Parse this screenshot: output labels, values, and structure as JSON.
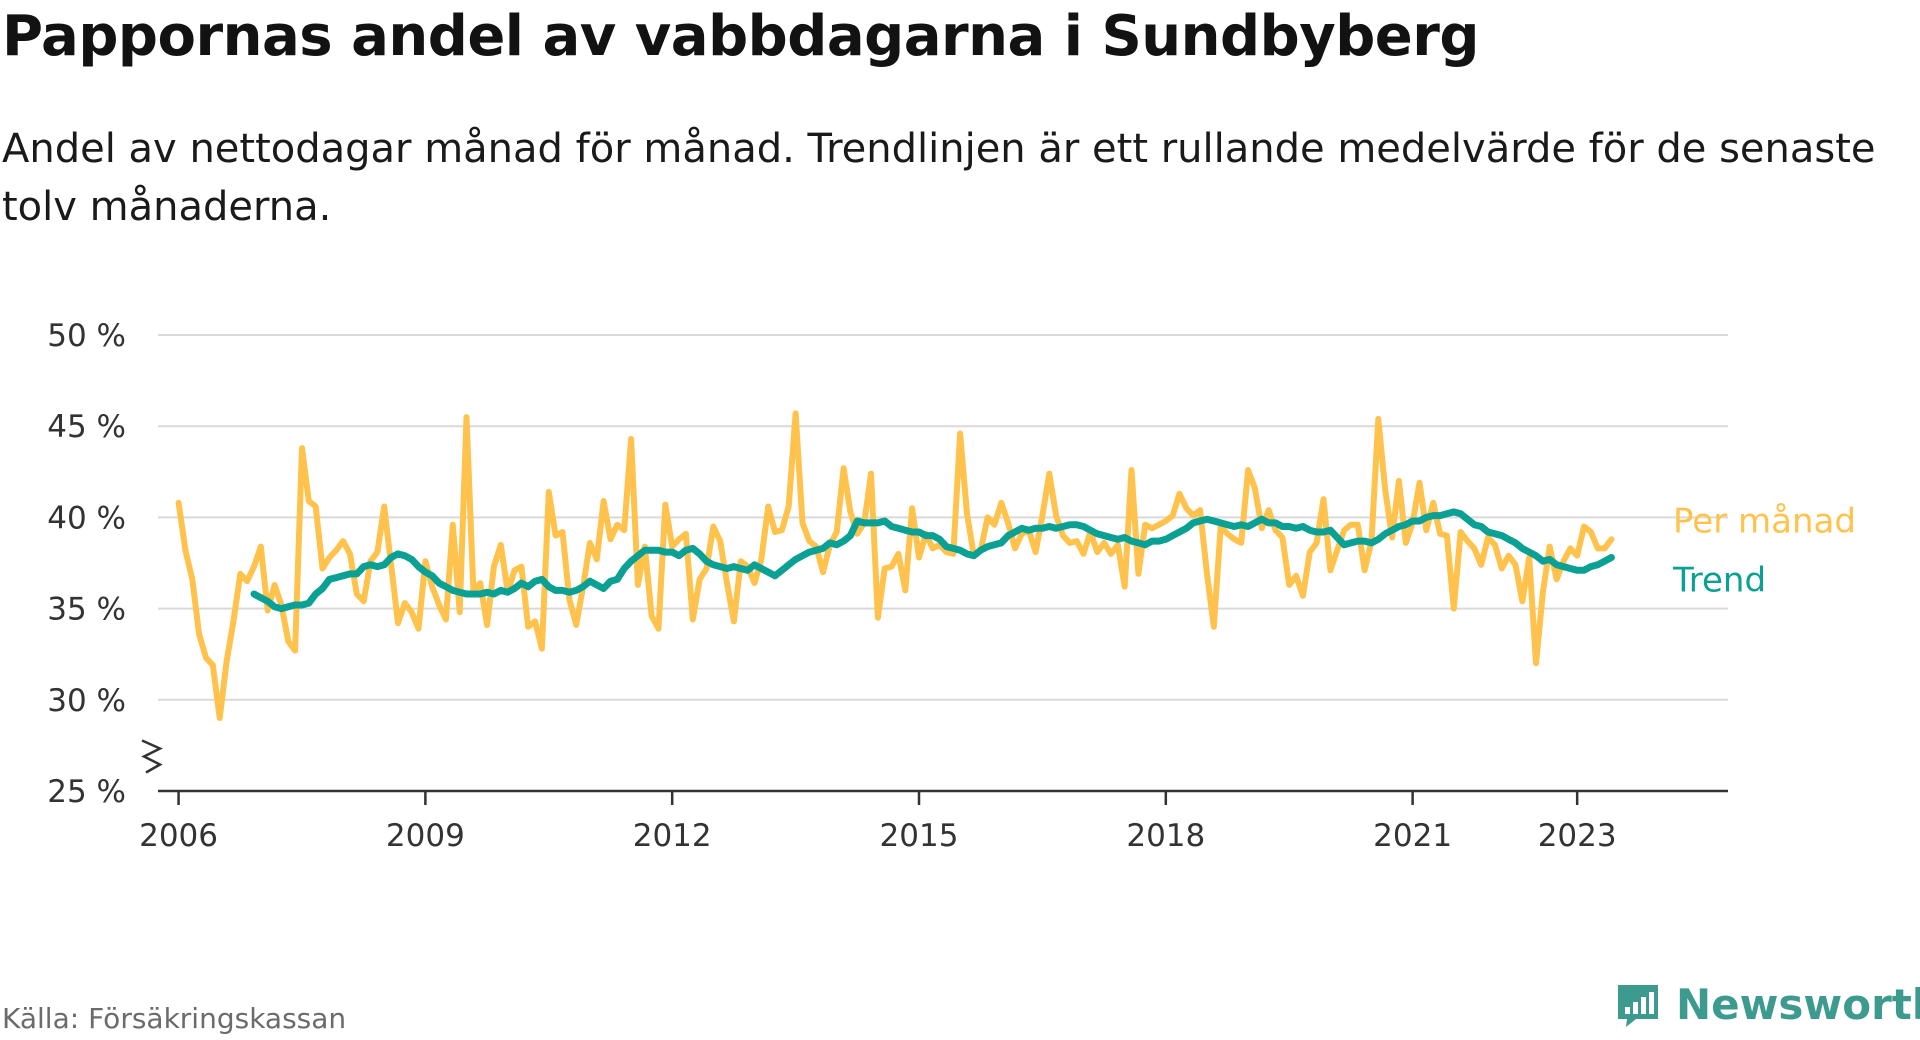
{
  "title": "Pappornas andel av vabbdagarna i Sundbyberg",
  "subtitle": "Andel av nettodagar månad för månad. Trendlinjen är ett rullande medelvärde för de senaste tolv månaderna.",
  "source": "Källa: Försäkringskassan",
  "brand": "Newsworthy",
  "colors": {
    "monthly": "#ffc34d",
    "trend": "#0aa093",
    "grid": "#d9d9d9",
    "axis": "#333333",
    "brand": "#3d9a8e"
  },
  "chart_data": {
    "type": "line",
    "x_axis": {
      "type": "time",
      "range": [
        "2005-10",
        "2024-11"
      ],
      "tick_labels": [
        "2006",
        "2009",
        "2012",
        "2015",
        "2018",
        "2021",
        "2023"
      ],
      "tick_dates": [
        "2006-01",
        "2009-01",
        "2012-01",
        "2015-01",
        "2018-01",
        "2021-01",
        "2023-01"
      ]
    },
    "y_axis": {
      "range": [
        25,
        50
      ],
      "ticks": [
        25,
        30,
        35,
        40,
        45,
        50
      ],
      "tick_labels": [
        "25 %",
        "30 %",
        "35 %",
        "40 %",
        "45 %",
        "50 %"
      ],
      "axis_break": true,
      "grid": true
    },
    "legend": "direct labels at right end of lines",
    "series": [
      {
        "name": "Per månad",
        "start": "2006-01",
        "values": [
          40.8,
          38.2,
          36.6,
          33.6,
          32.3,
          31.9,
          29.0,
          32.1,
          34.3,
          36.9,
          36.5,
          37.3,
          38.4,
          34.9,
          36.3,
          35.2,
          33.2,
          32.7,
          43.8,
          40.9,
          40.6,
          37.2,
          37.8,
          38.2,
          38.7,
          38.0,
          35.8,
          35.4,
          37.6,
          38.1,
          40.6,
          37.4,
          34.2,
          35.3,
          34.8,
          33.9,
          37.6,
          36.2,
          35.2,
          34.4,
          39.6,
          34.8,
          45.5,
          36.0,
          36.4,
          34.1,
          37.3,
          38.5,
          35.9,
          37.1,
          37.3,
          34.0,
          34.3,
          32.8,
          41.4,
          39.0,
          39.2,
          35.5,
          34.1,
          36.2,
          38.6,
          37.7,
          40.9,
          38.8,
          39.6,
          39.3,
          44.3,
          36.3,
          38.4,
          34.6,
          33.9,
          40.7,
          38.4,
          38.8,
          39.1,
          34.4,
          36.6,
          37.2,
          39.5,
          38.7,
          36.4,
          34.3,
          37.6,
          37.3,
          36.4,
          37.7,
          40.6,
          39.2,
          39.3,
          40.6,
          45.7,
          39.7,
          38.7,
          38.4,
          37.0,
          38.5,
          39.2,
          42.7,
          40.3,
          39.1,
          39.7,
          42.4,
          34.5,
          37.2,
          37.3,
          38.0,
          36.0,
          40.5,
          37.8,
          39.1,
          38.3,
          38.5,
          38.1,
          38.0,
          44.6,
          40.2,
          37.9,
          38.2,
          40.0,
          39.6,
          40.8,
          39.7,
          38.3,
          39.1,
          39.3,
          38.1,
          40.1,
          42.4,
          40.1,
          39.0,
          38.6,
          38.7,
          38.0,
          39.2,
          38.1,
          38.6,
          38.0,
          38.5,
          36.2,
          42.6,
          36.9,
          39.6,
          39.4,
          39.6,
          39.8,
          40.1,
          41.3,
          40.5,
          40.1,
          40.4,
          36.9,
          34.0,
          39.5,
          39.1,
          38.8,
          38.6,
          42.6,
          41.6,
          39.4,
          40.4,
          39.3,
          38.9,
          36.3,
          36.8,
          35.7,
          38.1,
          38.6,
          41.0,
          37.1,
          38.2,
          39.3,
          39.6,
          39.6,
          37.1,
          38.7,
          45.4,
          41.5,
          38.9,
          42.0,
          38.6,
          39.7,
          41.9,
          39.3,
          40.8,
          39.1,
          39.0,
          35.0,
          39.2,
          38.7,
          38.3,
          37.4,
          38.9,
          38.5,
          37.2,
          37.9,
          37.4,
          35.4,
          37.8,
          32.0,
          35.9,
          38.4,
          36.6,
          37.6,
          38.3,
          37.9,
          39.5,
          39.2,
          38.3,
          38.3,
          38.8
        ]
      },
      {
        "name": "Trend",
        "start": "2006-12",
        "values": [
          35.8,
          35.6,
          35.4,
          35.1,
          35.0,
          35.1,
          35.2,
          35.2,
          35.3,
          35.8,
          36.1,
          36.6,
          36.7,
          36.8,
          36.9,
          36.9,
          37.3,
          37.4,
          37.3,
          37.4,
          37.8,
          38.0,
          37.9,
          37.7,
          37.3,
          37.0,
          36.8,
          36.4,
          36.2,
          36.0,
          35.9,
          35.8,
          35.8,
          35.8,
          35.9,
          35.8,
          36.0,
          35.9,
          36.1,
          36.4,
          36.2,
          36.5,
          36.6,
          36.2,
          36.0,
          36.0,
          35.9,
          36.0,
          36.2,
          36.5,
          36.3,
          36.1,
          36.5,
          36.6,
          37.2,
          37.6,
          37.9,
          38.2,
          38.2,
          38.2,
          38.1,
          38.1,
          37.9,
          38.2,
          38.3,
          38.0,
          37.6,
          37.4,
          37.3,
          37.2,
          37.3,
          37.2,
          37.1,
          37.4,
          37.2,
          37.0,
          36.8,
          37.1,
          37.4,
          37.7,
          37.9,
          38.1,
          38.2,
          38.3,
          38.6,
          38.5,
          38.7,
          39.0,
          39.8,
          39.7,
          39.7,
          39.7,
          39.8,
          39.5,
          39.4,
          39.3,
          39.2,
          39.2,
          39.0,
          39.0,
          38.8,
          38.4,
          38.3,
          38.2,
          38.0,
          37.9,
          38.2,
          38.4,
          38.5,
          38.6,
          39.0,
          39.2,
          39.4,
          39.3,
          39.4,
          39.4,
          39.5,
          39.4,
          39.5,
          39.6,
          39.6,
          39.5,
          39.3,
          39.1,
          39.0,
          38.9,
          38.8,
          38.9,
          38.7,
          38.6,
          38.5,
          38.7,
          38.7,
          38.8,
          39.0,
          39.2,
          39.4,
          39.7,
          39.8,
          39.9,
          39.8,
          39.7,
          39.6,
          39.5,
          39.6,
          39.5,
          39.7,
          39.9,
          39.7,
          39.7,
          39.5,
          39.5,
          39.4,
          39.5,
          39.3,
          39.2,
          39.2,
          39.3,
          38.9,
          38.5,
          38.6,
          38.7,
          38.7,
          38.6,
          38.8,
          39.1,
          39.3,
          39.5,
          39.6,
          39.8,
          39.8,
          40.0,
          40.1,
          40.1,
          40.2,
          40.3,
          40.2,
          39.9,
          39.6,
          39.5,
          39.2,
          39.1,
          39.0,
          38.8,
          38.6,
          38.3,
          38.1,
          37.9,
          37.6,
          37.7,
          37.4,
          37.3,
          37.2,
          37.1,
          37.1,
          37.3,
          37.4,
          37.6,
          37.8
        ]
      }
    ]
  }
}
